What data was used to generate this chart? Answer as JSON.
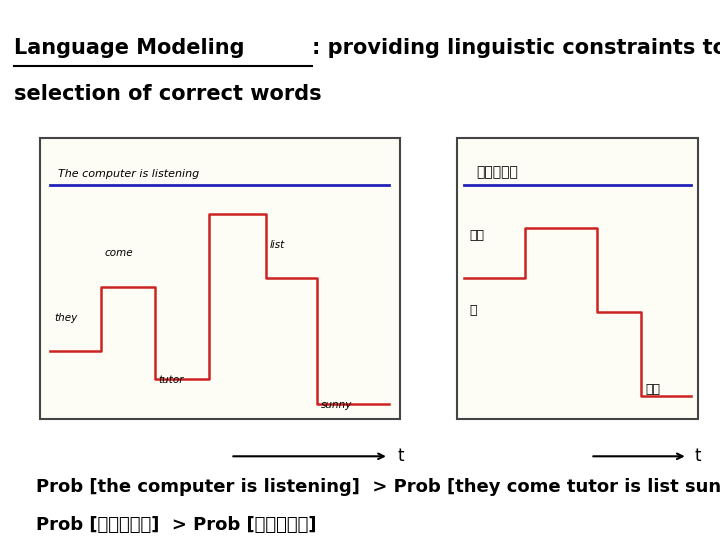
{
  "title_underlined": "Language Modeling",
  "title_rest": ": providing linguistic constraints to help the",
  "title_rest2": "selection of correct words",
  "title_fontsize": 15,
  "bg_color": "#ffffff",
  "prob_line1": "Prob [the computer is listening]  > Prob [they come tutor is list sunny]",
  "prob_line2": "Prob [電腦聽聲音]  > Prob [店老天尌吟]",
  "prob_fontsize": 13,
  "left_top_label": "The computer is listening",
  "right_top_label": "電腦聽聲音",
  "step_labels_left": [
    "they",
    "come",
    "tutor",
    "list",
    "sunny"
  ],
  "right_labels": [
    "老天",
    "店",
    "尌吟"
  ]
}
